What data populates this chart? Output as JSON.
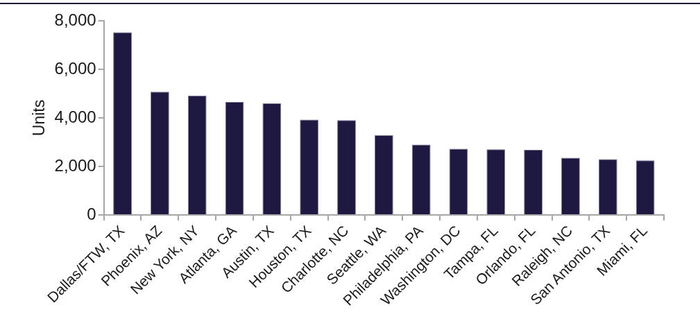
{
  "chart_data": {
    "type": "bar",
    "ylabel": "Units",
    "categories": [
      "Dallas/FTW, TX",
      "Phoenix, AZ",
      "New York, NY",
      "Atlanta, GA",
      "Austin, TX",
      "Houston, TX",
      "Charlotte, NC",
      "Seattle, WA",
      "Philadelphia, PA",
      "Washington, DC",
      "Tampa, FL",
      "Orlando, FL",
      "Raleigh, NC",
      "San Antonio, TX",
      "Miami, FL"
    ],
    "values": [
      7530,
      5080,
      4920,
      4660,
      4600,
      3930,
      3910,
      3290,
      2900,
      2730,
      2710,
      2690,
      2360,
      2300,
      2250
    ],
    "color": "#1e1941",
    "ylim": [
      0,
      8000
    ],
    "yticks": [
      0,
      {
        "value": 2000,
        "label": "2,000"
      },
      {
        "value": 4000,
        "label": "4,000"
      },
      {
        "value": 6000,
        "label": "6,000"
      },
      {
        "value": 8000,
        "label": "8,000"
      }
    ],
    "grid": false,
    "legend": false
  }
}
